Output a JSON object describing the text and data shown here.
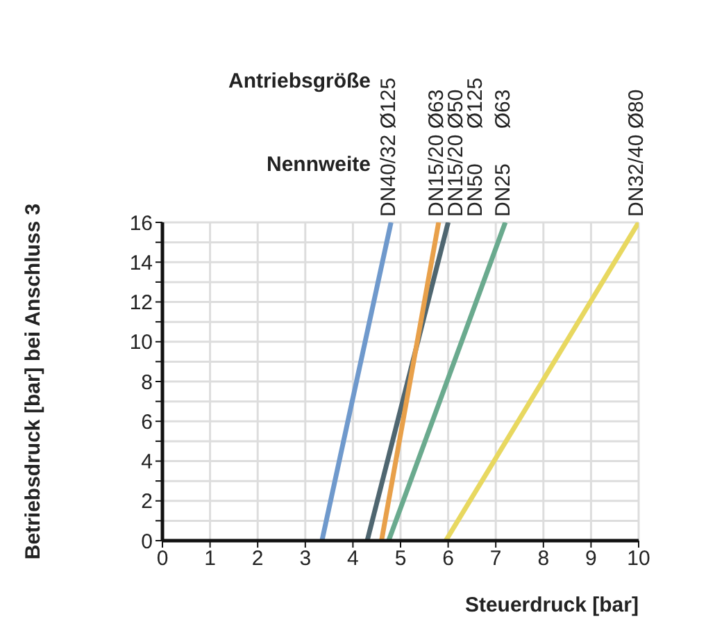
{
  "chart_data": {
    "type": "line",
    "xlabel": "Steuerdruck [bar]",
    "ylabel": "Betriebsdruck [bar] bei Anschluss 3",
    "xlim": [
      0,
      10
    ],
    "xticks": [
      0,
      1,
      2,
      3,
      4,
      5,
      6,
      7,
      8,
      9,
      10
    ],
    "ylim": [
      0,
      16
    ],
    "yticks": [
      0,
      {
        "value": 1,
        "label": null
      },
      2,
      {
        "value": 3,
        "label": null
      },
      4,
      {
        "value": 5,
        "label": null
      },
      6,
      {
        "value": 7,
        "label": null
      },
      8,
      {
        "value": 9,
        "label": null
      },
      10,
      {
        "value": 11,
        "label": null
      },
      12,
      {
        "value": 13,
        "label": null
      },
      14,
      {
        "value": 15,
        "label": null
      },
      16
    ],
    "grid": true,
    "marker": "none",
    "line_style": "solid",
    "series": [
      {
        "color": "#6f99cc",
        "x": [
          3.35,
          4.8
        ],
        "values": [
          0,
          16
        ]
      },
      {
        "color": "#4f6670",
        "x": [
          4.3,
          6.0
        ],
        "values": [
          0,
          16
        ]
      },
      {
        "color": "#e8a04a",
        "x": [
          4.6,
          5.8
        ],
        "values": [
          0,
          16
        ]
      },
      {
        "color": "#6aaa8e",
        "x": [
          4.75,
          7.2
        ],
        "values": [
          0,
          16
        ]
      },
      {
        "color": "#e8d860",
        "x": [
          5.95,
          10
        ],
        "values": [
          0,
          16
        ]
      }
    ],
    "annotations": [
      "Antriebsgröße",
      "Nennweite",
      {
        "text": "DN40/32 Ø125",
        "x": 4.8,
        "y": 16
      },
      {
        "text": "DN15/20 Ø63",
        "x": 5.8,
        "y": 16
      },
      {
        "text": "DN15/20 Ø50",
        "x": 6.0,
        "y": 16
      },
      {
        "text": "DN50      Ø125",
        "x": 6.0,
        "y": 16
      },
      {
        "text": "DN25      Ø63",
        "x": 7.2,
        "y": 16
      },
      {
        "text": "DN32/40 Ø80",
        "x": 10,
        "y": 16
      }
    ]
  }
}
